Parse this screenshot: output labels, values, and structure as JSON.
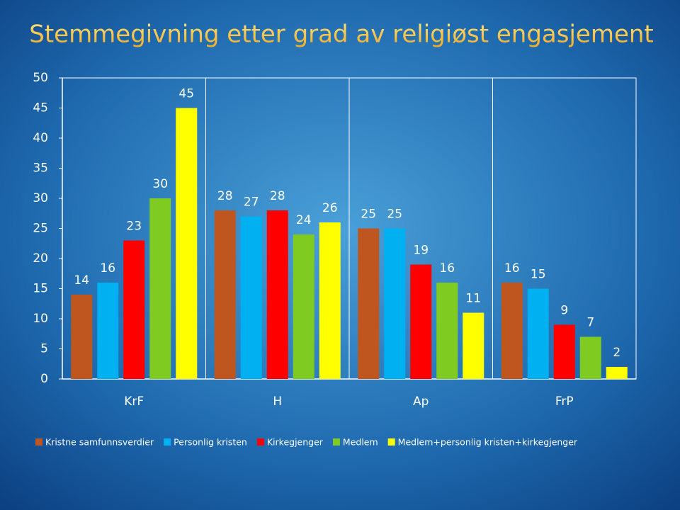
{
  "chart_data": {
    "type": "bar",
    "title": "Stemmegivning etter grad av religiøst engasjement",
    "categories": [
      "KrF",
      "H",
      "Ap",
      "FrP"
    ],
    "series": [
      {
        "name": "Kristne samfunnsverdier",
        "color": "#c0561f",
        "values": [
          14,
          28,
          25,
          16
        ]
      },
      {
        "name": "Personlig kristen",
        "color": "#00b0f0",
        "values": [
          16,
          27,
          25,
          15
        ]
      },
      {
        "name": "Kirkegjenger",
        "color": "#ff0000",
        "values": [
          23,
          28,
          19,
          9
        ]
      },
      {
        "name": "Medlem",
        "color": "#7fcb22",
        "values": [
          30,
          24,
          16,
          7
        ]
      },
      {
        "name": "Medlem+personlig kristen+kirkegjenger",
        "color": "#ffff00",
        "values": [
          45,
          26,
          11,
          2
        ]
      }
    ],
    "ylim": [
      0,
      50
    ],
    "yticks": [
      0,
      5,
      10,
      15,
      20,
      25,
      30,
      35,
      40,
      45,
      50
    ],
    "legend": "bottom"
  }
}
